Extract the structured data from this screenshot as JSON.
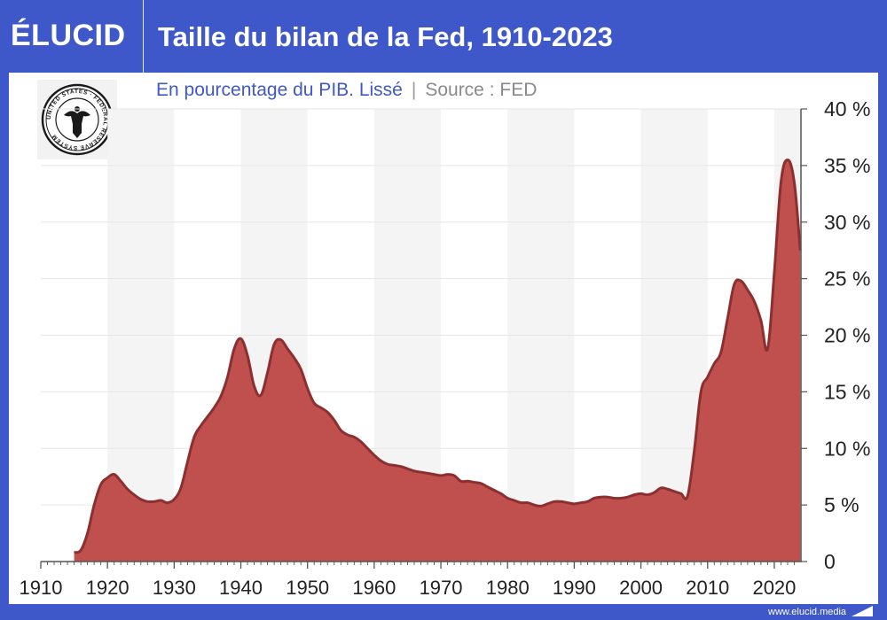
{
  "brand": {
    "logo_text": "ÉLUCID",
    "footer_url": "www.elucid.media"
  },
  "title": "Taille du bilan de la Fed, 1910-2023",
  "subtitle": {
    "main": "En pourcentage du PIB. Lissé",
    "separator": "|",
    "source": "Source : FED"
  },
  "seal": {
    "icon": "federal-reserve-seal-icon",
    "text": "UNITED STATES · FEDERAL RESERVE SYSTEM"
  },
  "colors": {
    "header": "#3f58c9",
    "area_fill": "#c0504d",
    "area_line": "#8b2f30",
    "band": "#f4f4f4"
  },
  "chart_data": {
    "type": "area",
    "title": "Taille du bilan de la Fed, 1910-2023",
    "subtitle": "En pourcentage du PIB. Lissé",
    "source": "Source : FED",
    "xlabel": "",
    "ylabel": "",
    "xlim": [
      1910,
      2023
    ],
    "ylim": [
      0,
      40
    ],
    "x_ticks": [
      "1910",
      "1920",
      "1930",
      "1940",
      "1950",
      "1960",
      "1970",
      "1980",
      "1990",
      "2000",
      "2010",
      "2020"
    ],
    "y_ticks": [
      "0",
      "5 %",
      "10 %",
      "15 %",
      "20 %",
      "25 %",
      "30 %",
      "35 %",
      "40 %"
    ],
    "y_axis_position": "right",
    "grid": true,
    "series": [
      {
        "values": [
          [
            1915,
            0.8
          ],
          [
            1916,
            1.0
          ],
          [
            1917,
            2.5
          ],
          [
            1918,
            5.0
          ],
          [
            1919,
            6.8
          ],
          [
            1920,
            7.4
          ],
          [
            1921,
            7.7
          ],
          [
            1922,
            7.1
          ],
          [
            1923,
            6.4
          ],
          [
            1924,
            5.9
          ],
          [
            1925,
            5.5
          ],
          [
            1926,
            5.3
          ],
          [
            1927,
            5.3
          ],
          [
            1928,
            5.4
          ],
          [
            1929,
            5.2
          ],
          [
            1930,
            5.5
          ],
          [
            1931,
            6.5
          ],
          [
            1932,
            8.8
          ],
          [
            1933,
            11.0
          ],
          [
            1934,
            12.0
          ],
          [
            1935,
            12.8
          ],
          [
            1936,
            13.6
          ],
          [
            1937,
            14.6
          ],
          [
            1938,
            16.3
          ],
          [
            1939,
            18.8
          ],
          [
            1940,
            19.7
          ],
          [
            1941,
            18.2
          ],
          [
            1942,
            15.5
          ],
          [
            1943,
            14.7
          ],
          [
            1944,
            16.7
          ],
          [
            1945,
            19.2
          ],
          [
            1946,
            19.6
          ],
          [
            1947,
            18.8
          ],
          [
            1948,
            18.0
          ],
          [
            1949,
            17.0
          ],
          [
            1950,
            15.3
          ],
          [
            1951,
            14.0
          ],
          [
            1952,
            13.6
          ],
          [
            1953,
            13.2
          ],
          [
            1954,
            12.5
          ],
          [
            1955,
            11.6
          ],
          [
            1956,
            11.2
          ],
          [
            1957,
            11.0
          ],
          [
            1958,
            10.6
          ],
          [
            1959,
            10.0
          ],
          [
            1960,
            9.4
          ],
          [
            1961,
            8.9
          ],
          [
            1962,
            8.6
          ],
          [
            1963,
            8.5
          ],
          [
            1964,
            8.4
          ],
          [
            1965,
            8.2
          ],
          [
            1966,
            8.0
          ],
          [
            1967,
            7.9
          ],
          [
            1968,
            7.8
          ],
          [
            1969,
            7.7
          ],
          [
            1970,
            7.6
          ],
          [
            1971,
            7.7
          ],
          [
            1972,
            7.6
          ],
          [
            1973,
            7.1
          ],
          [
            1974,
            7.1
          ],
          [
            1975,
            7.0
          ],
          [
            1976,
            6.9
          ],
          [
            1977,
            6.6
          ],
          [
            1978,
            6.3
          ],
          [
            1979,
            6.0
          ],
          [
            1980,
            5.6
          ],
          [
            1981,
            5.4
          ],
          [
            1982,
            5.2
          ],
          [
            1983,
            5.2
          ],
          [
            1984,
            5.0
          ],
          [
            1985,
            4.9
          ],
          [
            1986,
            5.1
          ],
          [
            1987,
            5.3
          ],
          [
            1988,
            5.3
          ],
          [
            1989,
            5.2
          ],
          [
            1990,
            5.1
          ],
          [
            1991,
            5.2
          ],
          [
            1992,
            5.3
          ],
          [
            1993,
            5.6
          ],
          [
            1994,
            5.7
          ],
          [
            1995,
            5.7
          ],
          [
            1996,
            5.6
          ],
          [
            1997,
            5.6
          ],
          [
            1998,
            5.7
          ],
          [
            1999,
            5.9
          ],
          [
            2000,
            6.0
          ],
          [
            2001,
            5.9
          ],
          [
            2002,
            6.1
          ],
          [
            2003,
            6.5
          ],
          [
            2004,
            6.4
          ],
          [
            2005,
            6.2
          ],
          [
            2006,
            6.0
          ],
          [
            2007,
            5.8
          ],
          [
            2008,
            9.8
          ],
          [
            2009,
            15.0
          ],
          [
            2010,
            16.3
          ],
          [
            2011,
            17.5
          ],
          [
            2012,
            18.5
          ],
          [
            2013,
            21.5
          ],
          [
            2014,
            24.5
          ],
          [
            2015,
            24.8
          ],
          [
            2016,
            24.0
          ],
          [
            2017,
            23.0
          ],
          [
            2018,
            21.3
          ],
          [
            2019,
            18.8
          ],
          [
            2020,
            25.5
          ],
          [
            2021,
            33.5
          ],
          [
            2022,
            35.5
          ],
          [
            2023,
            33.5
          ],
          [
            2023.9,
            27.5
          ]
        ]
      }
    ]
  }
}
